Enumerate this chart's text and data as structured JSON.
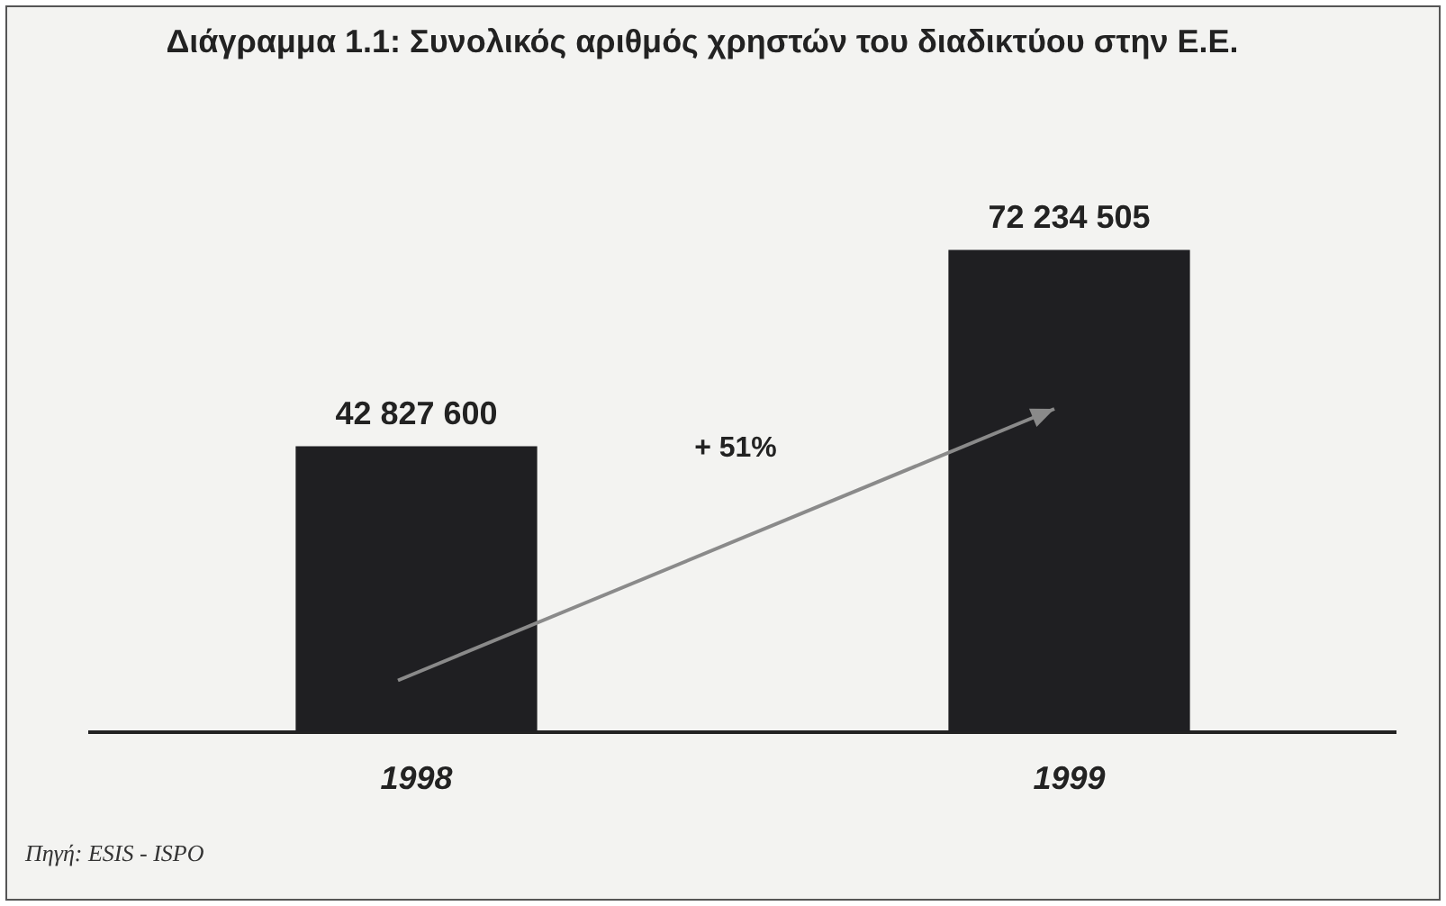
{
  "chart_data": {
    "type": "bar",
    "title": "Διάγραμμα 1.1: Συνολικός αριθμός χρηστών του διαδικτύου στην Ε.Ε.",
    "categories": [
      "1998",
      "1999"
    ],
    "values": [
      42827600,
      72234505
    ],
    "value_labels": [
      "42 827 600",
      "72 234 505"
    ],
    "color": "#1f1f22",
    "grid": false,
    "legend": false,
    "annotations": [
      "+ 51%",
      "Πηγή: ESIS - ISPO"
    ]
  }
}
